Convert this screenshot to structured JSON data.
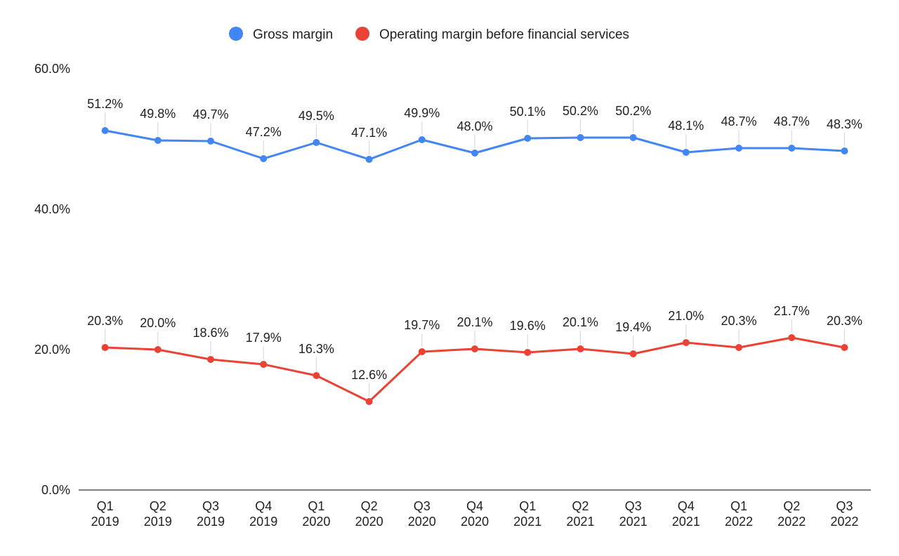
{
  "chart_data": {
    "type": "line",
    "title": "",
    "xlabel": "",
    "ylabel": "",
    "categories": [
      [
        "Q1",
        "2019"
      ],
      [
        "Q2",
        "2019"
      ],
      [
        "Q3",
        "2019"
      ],
      [
        "Q4",
        "2019"
      ],
      [
        "Q1",
        "2020"
      ],
      [
        "Q2",
        "2020"
      ],
      [
        "Q3",
        "2020"
      ],
      [
        "Q4",
        "2020"
      ],
      [
        "Q1",
        "2021"
      ],
      [
        "Q2",
        "2021"
      ],
      [
        "Q3",
        "2021"
      ],
      [
        "Q4",
        "2021"
      ],
      [
        "Q1",
        "2022"
      ],
      [
        "Q2",
        "2022"
      ],
      [
        "Q3",
        "2022"
      ]
    ],
    "y_ticks": [
      "0.0%",
      "20.0%",
      "40.0%",
      "60.0%"
    ],
    "y_tick_values": [
      0,
      20,
      40,
      60
    ],
    "ylim": [
      0,
      60
    ],
    "grid": false,
    "legend_position": "top-center",
    "series": [
      {
        "name": "Gross margin",
        "color": "#4285f4",
        "values": [
          51.2,
          49.8,
          49.7,
          47.2,
          49.5,
          47.1,
          49.9,
          48.0,
          50.1,
          50.2,
          50.2,
          48.1,
          48.7,
          48.7,
          48.3
        ],
        "labels": [
          "51.2%",
          "49.8%",
          "49.7%",
          "47.2%",
          "49.5%",
          "47.1%",
          "49.9%",
          "48.0%",
          "50.1%",
          "50.2%",
          "50.2%",
          "48.1%",
          "48.7%",
          "48.7%",
          "48.3%"
        ]
      },
      {
        "name": "Operating margin before financial services",
        "color": "#ea4335",
        "values": [
          20.3,
          20.0,
          18.6,
          17.9,
          16.3,
          12.6,
          19.7,
          20.1,
          19.6,
          20.1,
          19.4,
          21.0,
          20.3,
          21.7,
          20.3
        ],
        "labels": [
          "20.3%",
          "20.0%",
          "18.6%",
          "17.9%",
          "16.3%",
          "12.6%",
          "19.7%",
          "20.1%",
          "19.6%",
          "20.1%",
          "19.4%",
          "21.0%",
          "20.3%",
          "21.7%",
          "20.3%"
        ]
      }
    ]
  }
}
